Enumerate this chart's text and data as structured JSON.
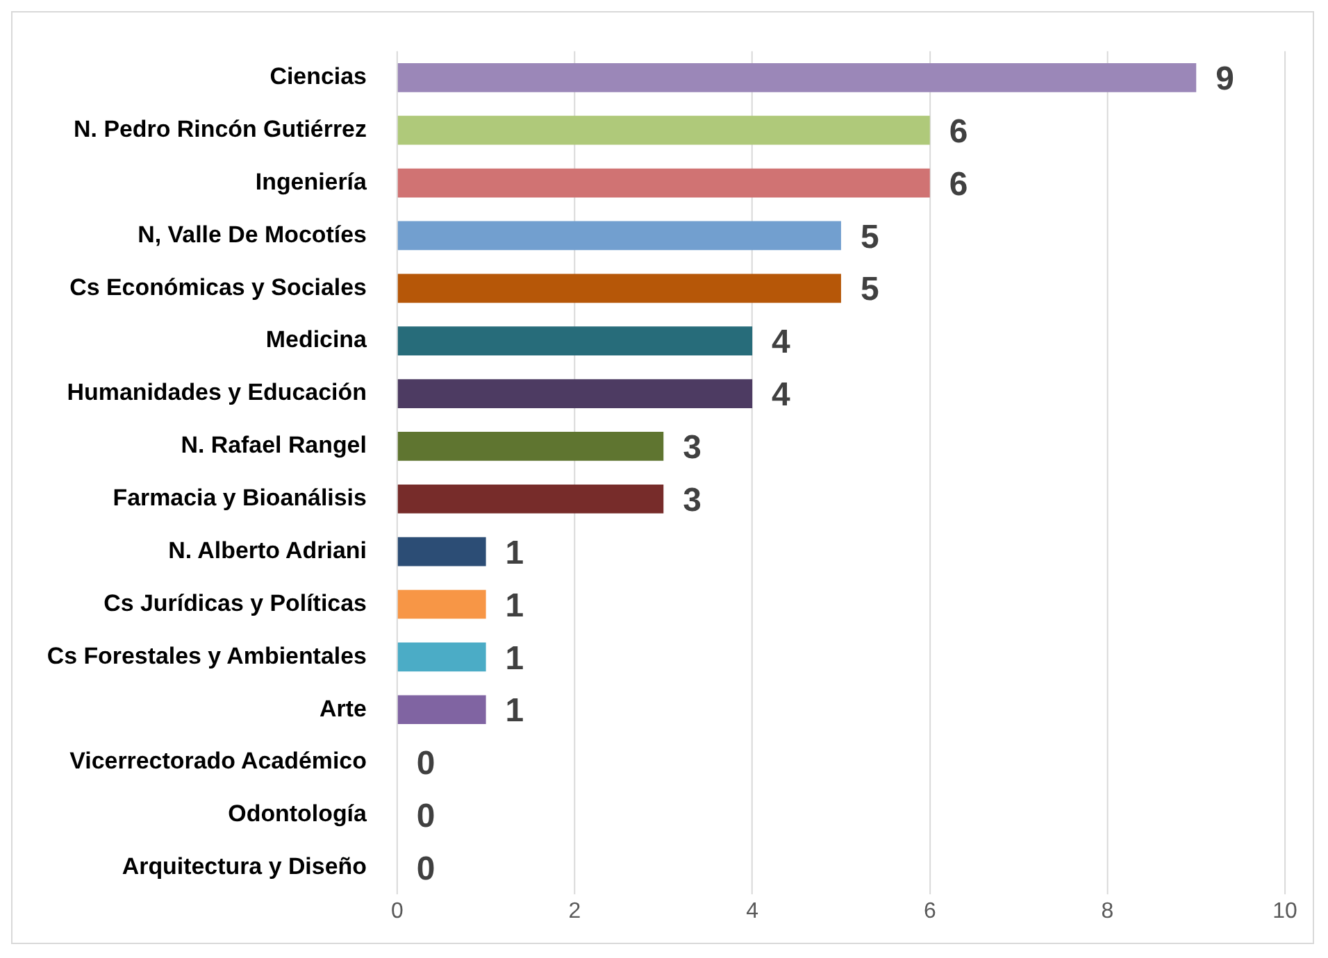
{
  "chart_data": {
    "type": "bar",
    "orientation": "horizontal",
    "categories": [
      "Ciencias",
      "N. Pedro Rincón Gutiérrez",
      "Ingeniería",
      "N, Valle De Mocotíes",
      "Cs Económicas y Sociales",
      "Medicina",
      "Humanidades y Educación",
      "N. Rafael Rangel",
      "Farmacia y Bioanálisis",
      "N. Alberto Adriani",
      "Cs Jurídicas y Políticas",
      "Cs Forestales y Ambientales",
      "Arte",
      "Vicerrectorado Académico",
      "Odontología",
      "Arquitectura y Diseño"
    ],
    "values": [
      9,
      6,
      6,
      5,
      5,
      4,
      4,
      3,
      3,
      1,
      1,
      1,
      1,
      0,
      0,
      0
    ],
    "colors": [
      "#9b87b8",
      "#afc97a",
      "#d07373",
      "#729fcf",
      "#b65708",
      "#276c7a",
      "#4d3b62",
      "#5f7530",
      "#772c2a",
      "#2c4d75",
      "#f79646",
      "#4bacc6",
      "#8064a2",
      "#4f81bd",
      "#c0504d",
      "#9bbb59"
    ],
    "xlim": [
      0,
      10
    ],
    "xticks": [
      0,
      2,
      4,
      6,
      8,
      10
    ],
    "grid": "x",
    "data_labels": true
  }
}
